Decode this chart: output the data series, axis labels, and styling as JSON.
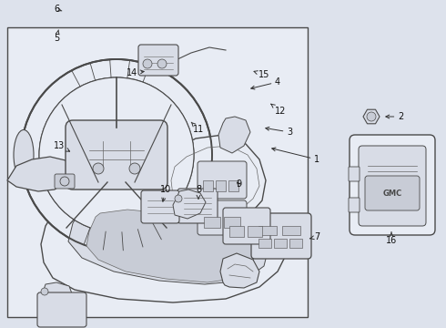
{
  "bg_outer": "#dde2ec",
  "bg_box": "#e8ecf4",
  "lc": "#4a4a4a",
  "lc_thin": "#666666",
  "fill_light": "#e8ecf4",
  "fill_mid": "#d8dce6",
  "fill_dark": "#c8ccd6",
  "figsize": [
    4.9,
    3.6
  ],
  "dpi": 100
}
